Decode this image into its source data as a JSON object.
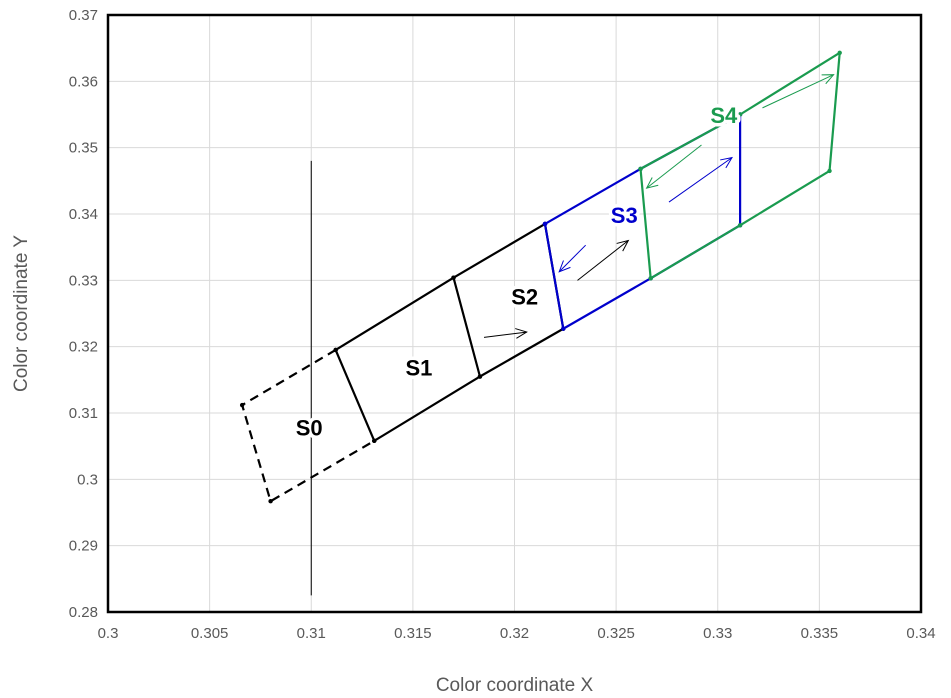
{
  "chart_data": {
    "type": "line",
    "xlabel": "Color coordinate X",
    "ylabel": "Color coordinate Y",
    "xlim": [
      0.3,
      0.34
    ],
    "ylim": [
      0.28,
      0.37
    ],
    "x_ticks": [
      "0.3",
      "0.305",
      "0.31",
      "0.315",
      "0.32",
      "0.325",
      "0.33",
      "0.335",
      "0.34"
    ],
    "y_ticks": [
      "0.28",
      "0.29",
      "0.3",
      "0.31",
      "0.32",
      "0.33",
      "0.34",
      "0.35",
      "0.36",
      "0.37"
    ],
    "grid": true,
    "colors": {
      "black": "#000000",
      "blue": "#0000cc",
      "green": "#1a9b4f"
    },
    "reference_line": {
      "x": 0.31,
      "y": [
        0.2825,
        0.348
      ]
    },
    "series": [
      {
        "region": "S0",
        "color": "black",
        "dashed": true,
        "closed": false,
        "points": [
          [
            0.3112,
            0.3195
          ],
          [
            0.3066,
            0.3112
          ],
          [
            0.308,
            0.2967
          ],
          [
            0.3131,
            0.3058
          ]
        ]
      },
      {
        "region": "S1",
        "color": "black",
        "dashed": false,
        "closed": true,
        "points": [
          [
            0.3112,
            0.3195
          ],
          [
            0.317,
            0.3304
          ],
          [
            0.3183,
            0.3155
          ],
          [
            0.3131,
            0.3058
          ]
        ]
      },
      {
        "region": "S2",
        "color": "black",
        "dashed": false,
        "closed": false,
        "points": [
          [
            0.317,
            0.3304
          ],
          [
            0.3215,
            0.3385
          ],
          [
            0.3224,
            0.3227
          ],
          [
            0.3183,
            0.3155
          ]
        ]
      },
      {
        "region": "S3",
        "color": "blue",
        "dashed": false,
        "closed": false,
        "points": [
          [
            0.3215,
            0.3385
          ],
          [
            0.3262,
            0.3468
          ],
          [
            0.3311,
            0.355
          ],
          [
            0.3311,
            0.3383
          ],
          [
            0.3267,
            0.3303
          ],
          [
            0.3224,
            0.3227
          ],
          [
            0.3215,
            0.3385
          ]
        ]
      },
      {
        "region": "S4",
        "color": "green",
        "dashed": false,
        "closed": false,
        "points": [
          [
            0.3262,
            0.3468
          ],
          [
            0.3311,
            0.355
          ],
          [
            0.336,
            0.3643
          ],
          [
            0.3355,
            0.3465
          ],
          [
            0.3311,
            0.3383
          ],
          [
            0.3267,
            0.3303
          ],
          [
            0.3262,
            0.3468
          ]
        ]
      }
    ],
    "arrows": [
      {
        "color": "black",
        "from": [
          0.3185,
          0.3214
        ],
        "to": [
          0.3206,
          0.3222
        ]
      },
      {
        "color": "black",
        "from": [
          0.3231,
          0.33
        ],
        "to": [
          0.3256,
          0.336
        ]
      },
      {
        "color": "blue",
        "from": [
          0.3235,
          0.3353
        ],
        "to": [
          0.3222,
          0.3313
        ]
      },
      {
        "color": "blue",
        "from": [
          0.3276,
          0.3418
        ],
        "to": [
          0.3307,
          0.3485
        ]
      },
      {
        "color": "green",
        "from": [
          0.3292,
          0.3504
        ],
        "to": [
          0.3265,
          0.3439
        ]
      },
      {
        "color": "green",
        "from": [
          0.3322,
          0.356
        ],
        "to": [
          0.3357,
          0.361
        ]
      }
    ],
    "region_labels": [
      {
        "text": "S0",
        "x": 0.3099,
        "y": 0.3075,
        "color": "black"
      },
      {
        "text": "S1",
        "x": 0.3153,
        "y": 0.3165,
        "color": "black"
      },
      {
        "text": "S2",
        "x": 0.3205,
        "y": 0.3272,
        "color": "black"
      },
      {
        "text": "S3",
        "x": 0.3254,
        "y": 0.3395,
        "color": "blue"
      },
      {
        "text": "S4",
        "x": 0.3303,
        "y": 0.3546,
        "color": "green"
      }
    ]
  }
}
